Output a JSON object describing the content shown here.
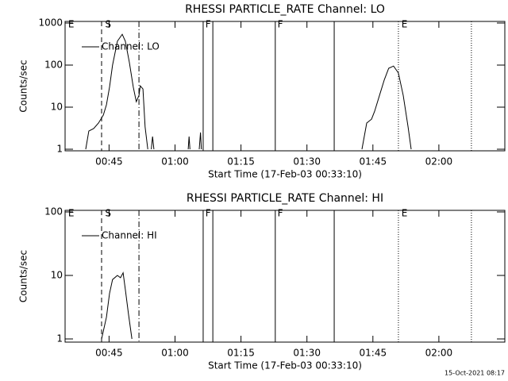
{
  "chart_data": [
    {
      "type": "line",
      "title": "RHESSI PARTICLE_RATE Channel: LO",
      "xlabel": "Start Time (17-Feb-03 00:33:10)",
      "ylabel": "Counts/sec",
      "log_y": true,
      "legend": "upper left",
      "xlim": [
        35,
        135
      ],
      "ylim": [
        1,
        1000
      ],
      "xticks": [
        {
          "value": 45,
          "label": "00:45"
        },
        {
          "value": 60,
          "label": "01:00"
        },
        {
          "value": 75,
          "label": "01:15"
        },
        {
          "value": 90,
          "label": "01:30"
        },
        {
          "value": 105,
          "label": "01:45"
        },
        {
          "value": 120,
          "label": "02:00"
        }
      ],
      "yticks": [
        1,
        10,
        100,
        1000
      ],
      "x": [
        39.7,
        40.4,
        41.5,
        42.6,
        43.7,
        44.4,
        45.1,
        45.8,
        46.9,
        48.0,
        48.7,
        49.6,
        50.5,
        51.2,
        51.8,
        52.1,
        52.7,
        53.2,
        53.8,
        54.2,
        54.6,
        54.9,
        55.2,
        55.5,
        63.0,
        63.2,
        63.4,
        63.6,
        65.5,
        65.8,
        66.0,
        66.2,
        102.5,
        103.6,
        104.7,
        105.4,
        106.5,
        107.6,
        108.6,
        109.7,
        110.8,
        111.9,
        113.0,
        113.7
      ],
      "series": [
        {
          "name": "Channel: LO",
          "color": "#000000",
          "values": [
            1,
            2.7,
            3.1,
            4.2,
            6.5,
            11.4,
            30,
            100,
            370,
            540,
            370,
            118,
            30,
            13.5,
            19,
            32,
            27,
            3.4,
            1,
            null,
            1,
            2,
            1,
            null,
            1,
            2,
            1,
            null,
            1,
            2.5,
            1,
            null,
            1,
            4.2,
            5.2,
            8,
            19,
            45,
            84,
            95,
            65,
            19,
            3.4,
            1
          ]
        }
      ],
      "markers": [
        {
          "x": 43.3,
          "style": "dashed"
        },
        {
          "x": 51.8,
          "style": "dashdot"
        },
        {
          "x": 66.4,
          "style": "solid"
        },
        {
          "x": 68.6,
          "style": "solid"
        },
        {
          "x": 82.8,
          "style": "solid"
        },
        {
          "x": 96.2,
          "style": "solid"
        },
        {
          "x": 110.8,
          "style": "dotted"
        },
        {
          "x": 127.4,
          "style": "dotted"
        }
      ],
      "annotations": [
        {
          "x": 35.7,
          "text": "E"
        },
        {
          "x": 44.1,
          "text": "S"
        },
        {
          "x": 66.9,
          "text": "F"
        },
        {
          "x": 83.3,
          "text": "F"
        },
        {
          "x": 111.5,
          "text": "E"
        }
      ]
    },
    {
      "type": "line",
      "title": "RHESSI PARTICLE_RATE Channel: HI",
      "xlabel": "Start Time (17-Feb-03 00:33:10)",
      "ylabel": "Counts/sec",
      "log_y": true,
      "legend": "upper left",
      "xlim": [
        35,
        135
      ],
      "ylim": [
        1,
        100
      ],
      "xticks": [
        {
          "value": 45,
          "label": "00:45"
        },
        {
          "value": 60,
          "label": "01:00"
        },
        {
          "value": 75,
          "label": "01:15"
        },
        {
          "value": 90,
          "label": "01:30"
        },
        {
          "value": 105,
          "label": "01:45"
        },
        {
          "value": 120,
          "label": "02:00"
        }
      ],
      "yticks": [
        1,
        10,
        100
      ],
      "x": [
        43.3,
        44.4,
        45.1,
        45.8,
        46.9,
        47.6,
        48.2,
        48.7,
        49.4,
        50.2
      ],
      "series": [
        {
          "name": "Channel: HI",
          "color": "#000000",
          "values": [
            1,
            2.2,
            5.2,
            8.6,
            10,
            9.2,
            11,
            6,
            2.5,
            1
          ]
        }
      ],
      "markers": [
        {
          "x": 43.3,
          "style": "dashed"
        },
        {
          "x": 51.8,
          "style": "dashdot"
        },
        {
          "x": 66.4,
          "style": "solid"
        },
        {
          "x": 68.6,
          "style": "solid"
        },
        {
          "x": 82.8,
          "style": "solid"
        },
        {
          "x": 96.2,
          "style": "solid"
        },
        {
          "x": 110.8,
          "style": "dotted"
        },
        {
          "x": 127.4,
          "style": "dotted"
        }
      ],
      "annotations": [
        {
          "x": 35.7,
          "text": "E"
        },
        {
          "x": 44.1,
          "text": "S"
        },
        {
          "x": 66.9,
          "text": "F"
        },
        {
          "x": 83.3,
          "text": "F"
        },
        {
          "x": 111.5,
          "text": "E"
        }
      ]
    }
  ],
  "footer": "15-Oct-2021 08:17"
}
